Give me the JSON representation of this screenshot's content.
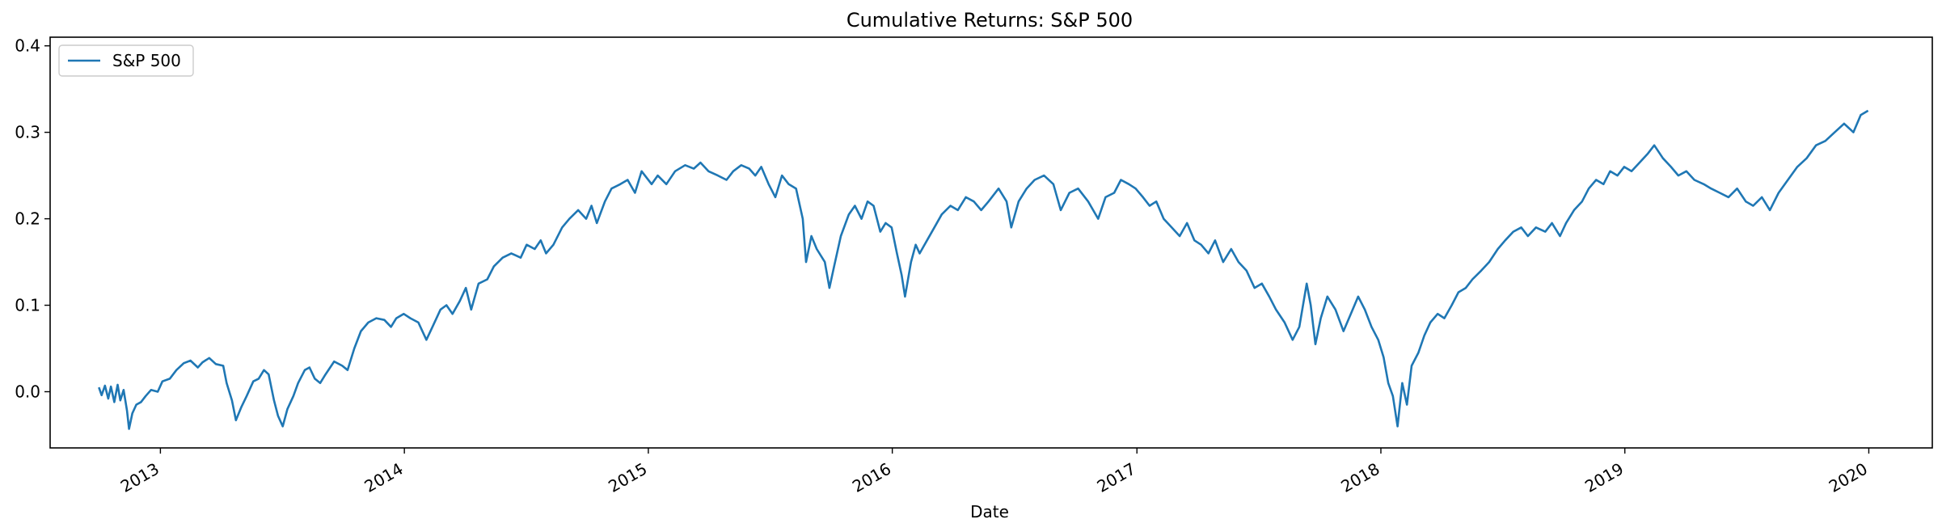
{
  "chart_data": {
    "type": "line",
    "title": "Cumulative Returns: S&P 500",
    "xlabel": "Date",
    "ylabel": "",
    "xlim": [
      "2012-07-20",
      "2020-04-05"
    ],
    "ylim": [
      -0.065,
      0.41
    ],
    "yticks": [
      0.0,
      0.1,
      0.2,
      0.3,
      0.4
    ],
    "ytick_labels": [
      "0.0",
      "0.1",
      "0.2",
      "0.3",
      "0.4"
    ],
    "xticks": [
      "2013-01-01",
      "2014-01-01",
      "2015-01-01",
      "2016-01-01",
      "2017-01-01",
      "2018-01-01",
      "2019-01-01",
      "2020-01-01"
    ],
    "xtick_labels": [
      "2013",
      "2014",
      "2015",
      "2016",
      "2017",
      "2018",
      "2019",
      "2020"
    ],
    "grid": false,
    "legend_position": "top-left",
    "colors": {
      "series": "#1f77b4",
      "axes": "#000000"
    },
    "series": [
      {
        "name": "S&P 500",
        "points": [
          [
            "2012-10-01",
            0.005
          ],
          [
            "2012-10-05",
            -0.004
          ],
          [
            "2012-10-10",
            0.007
          ],
          [
            "2012-10-15",
            -0.008
          ],
          [
            "2012-10-19",
            0.006
          ],
          [
            "2012-10-24",
            -0.012
          ],
          [
            "2012-10-29",
            0.008
          ],
          [
            "2012-11-02",
            -0.01
          ],
          [
            "2012-11-07",
            0.002
          ],
          [
            "2012-11-12",
            -0.022
          ],
          [
            "2012-11-15",
            -0.043
          ],
          [
            "2012-11-20",
            -0.025
          ],
          [
            "2012-11-26",
            -0.015
          ],
          [
            "2012-12-03",
            -0.012
          ],
          [
            "2012-12-10",
            -0.005
          ],
          [
            "2012-12-18",
            0.002
          ],
          [
            "2012-12-28",
            0.0
          ],
          [
            "2013-01-04",
            0.012
          ],
          [
            "2013-01-15",
            0.015
          ],
          [
            "2013-01-25",
            0.025
          ],
          [
            "2013-02-05",
            0.033
          ],
          [
            "2013-02-15",
            0.036
          ],
          [
            "2013-02-26",
            0.028
          ],
          [
            "2013-03-05",
            0.034
          ],
          [
            "2013-03-15",
            0.039
          ],
          [
            "2013-03-25",
            0.032
          ],
          [
            "2013-04-05",
            0.03
          ],
          [
            "2013-04-10",
            0.01
          ],
          [
            "2013-04-18",
            -0.01
          ],
          [
            "2013-04-24",
            -0.033
          ],
          [
            "2013-05-02",
            -0.018
          ],
          [
            "2013-05-10",
            -0.005
          ],
          [
            "2013-05-20",
            0.012
          ],
          [
            "2013-05-28",
            0.015
          ],
          [
            "2013-06-05",
            0.025
          ],
          [
            "2013-06-12",
            0.02
          ],
          [
            "2013-06-20",
            -0.01
          ],
          [
            "2013-06-26",
            -0.028
          ],
          [
            "2013-07-03",
            -0.04
          ],
          [
            "2013-07-10",
            -0.02
          ],
          [
            "2013-07-19",
            -0.005
          ],
          [
            "2013-07-26",
            0.01
          ],
          [
            "2013-08-05",
            0.025
          ],
          [
            "2013-08-12",
            0.028
          ],
          [
            "2013-08-20",
            0.015
          ],
          [
            "2013-08-28",
            0.01
          ],
          [
            "2013-09-05",
            0.02
          ],
          [
            "2013-09-18",
            0.035
          ],
          [
            "2013-09-30",
            0.03
          ],
          [
            "2013-10-08",
            0.025
          ],
          [
            "2013-10-18",
            0.05
          ],
          [
            "2013-10-28",
            0.07
          ],
          [
            "2013-11-08",
            0.08
          ],
          [
            "2013-11-20",
            0.085
          ],
          [
            "2013-12-02",
            0.083
          ],
          [
            "2013-12-12",
            0.075
          ],
          [
            "2013-12-20",
            0.085
          ],
          [
            "2013-12-31",
            0.09
          ],
          [
            "2014-01-10",
            0.085
          ],
          [
            "2014-01-22",
            0.08
          ],
          [
            "2014-02-03",
            0.06
          ],
          [
            "2014-02-12",
            0.075
          ],
          [
            "2014-02-24",
            0.095
          ],
          [
            "2014-03-05",
            0.1
          ],
          [
            "2014-03-14",
            0.09
          ],
          [
            "2014-03-25",
            0.105
          ],
          [
            "2014-04-03",
            0.12
          ],
          [
            "2014-04-11",
            0.095
          ],
          [
            "2014-04-22",
            0.125
          ],
          [
            "2014-05-05",
            0.13
          ],
          [
            "2014-05-15",
            0.145
          ],
          [
            "2014-05-28",
            0.155
          ],
          [
            "2014-06-10",
            0.16
          ],
          [
            "2014-06-24",
            0.155
          ],
          [
            "2014-07-03",
            0.17
          ],
          [
            "2014-07-15",
            0.165
          ],
          [
            "2014-07-24",
            0.175
          ],
          [
            "2014-08-01",
            0.16
          ],
          [
            "2014-08-12",
            0.17
          ],
          [
            "2014-08-25",
            0.19
          ],
          [
            "2014-09-05",
            0.2
          ],
          [
            "2014-09-18",
            0.21
          ],
          [
            "2014-09-30",
            0.2
          ],
          [
            "2014-10-08",
            0.215
          ],
          [
            "2014-10-16",
            0.195
          ],
          [
            "2014-10-28",
            0.22
          ],
          [
            "2014-11-07",
            0.235
          ],
          [
            "2014-11-20",
            0.24
          ],
          [
            "2014-12-01",
            0.245
          ],
          [
            "2014-12-12",
            0.23
          ],
          [
            "2014-12-22",
            0.255
          ],
          [
            "2015-01-06",
            0.24
          ],
          [
            "2015-01-15",
            0.25
          ],
          [
            "2015-01-28",
            0.24
          ],
          [
            "2015-02-10",
            0.255
          ],
          [
            "2015-02-25",
            0.262
          ],
          [
            "2015-03-10",
            0.258
          ],
          [
            "2015-03-20",
            0.265
          ],
          [
            "2015-04-01",
            0.255
          ],
          [
            "2015-04-15",
            0.25
          ],
          [
            "2015-04-28",
            0.245
          ],
          [
            "2015-05-08",
            0.255
          ],
          [
            "2015-05-20",
            0.262
          ],
          [
            "2015-06-01",
            0.258
          ],
          [
            "2015-06-10",
            0.25
          ],
          [
            "2015-06-19",
            0.26
          ],
          [
            "2015-06-30",
            0.24
          ],
          [
            "2015-07-10",
            0.225
          ],
          [
            "2015-07-20",
            0.25
          ],
          [
            "2015-07-30",
            0.24
          ],
          [
            "2015-08-10",
            0.235
          ],
          [
            "2015-08-20",
            0.2
          ],
          [
            "2015-08-25",
            0.15
          ],
          [
            "2015-09-02",
            0.18
          ],
          [
            "2015-09-10",
            0.165
          ],
          [
            "2015-09-22",
            0.15
          ],
          [
            "2015-09-29",
            0.12
          ],
          [
            "2015-10-06",
            0.145
          ],
          [
            "2015-10-16",
            0.18
          ],
          [
            "2015-10-28",
            0.205
          ],
          [
            "2015-11-06",
            0.215
          ],
          [
            "2015-11-16",
            0.2
          ],
          [
            "2015-11-25",
            0.22
          ],
          [
            "2015-12-04",
            0.215
          ],
          [
            "2015-12-14",
            0.185
          ],
          [
            "2015-12-22",
            0.195
          ],
          [
            "2015-12-31",
            0.19
          ],
          [
            "2016-01-08",
            0.16
          ],
          [
            "2016-01-15",
            0.135
          ],
          [
            "2016-01-20",
            0.11
          ],
          [
            "2016-01-29",
            0.15
          ],
          [
            "2016-02-05",
            0.17
          ],
          [
            "2016-02-11",
            0.16
          ],
          [
            "2016-02-22",
            0.175
          ],
          [
            "2016-03-04",
            0.19
          ],
          [
            "2016-03-15",
            0.205
          ],
          [
            "2016-03-28",
            0.215
          ],
          [
            "2016-04-08",
            0.21
          ],
          [
            "2016-04-20",
            0.225
          ],
          [
            "2016-05-02",
            0.22
          ],
          [
            "2016-05-13",
            0.21
          ],
          [
            "2016-05-24",
            0.22
          ],
          [
            "2016-06-08",
            0.235
          ],
          [
            "2016-06-20",
            0.22
          ],
          [
            "2016-06-27",
            0.19
          ],
          [
            "2016-07-08",
            0.22
          ],
          [
            "2016-07-20",
            0.235
          ],
          [
            "2016-08-01",
            0.245
          ],
          [
            "2016-08-15",
            0.25
          ],
          [
            "2016-08-29",
            0.24
          ],
          [
            "2016-09-09",
            0.21
          ],
          [
            "2016-09-22",
            0.23
          ],
          [
            "2016-10-05",
            0.235
          ],
          [
            "2016-10-20",
            0.22
          ],
          [
            "2016-11-04",
            0.2
          ],
          [
            "2016-11-15",
            0.225
          ],
          [
            "2016-11-28",
            0.23
          ],
          [
            "2016-12-08",
            0.245
          ],
          [
            "2016-12-20",
            0.24
          ],
          [
            "2016-12-30",
            0.235
          ],
          [
            "2017-01-10",
            0.225
          ],
          [
            "2017-01-20",
            0.215
          ],
          [
            "2017-01-30",
            0.22
          ],
          [
            "2017-02-10",
            0.2
          ],
          [
            "2017-02-22",
            0.19
          ],
          [
            "2017-03-06",
            0.18
          ],
          [
            "2017-03-17",
            0.195
          ],
          [
            "2017-03-28",
            0.175
          ],
          [
            "2017-04-07",
            0.17
          ],
          [
            "2017-04-18",
            0.16
          ],
          [
            "2017-04-28",
            0.175
          ],
          [
            "2017-05-10",
            0.15
          ],
          [
            "2017-05-22",
            0.165
          ],
          [
            "2017-06-02",
            0.15
          ],
          [
            "2017-06-14",
            0.14
          ],
          [
            "2017-06-26",
            0.12
          ],
          [
            "2017-07-07",
            0.125
          ],
          [
            "2017-07-18",
            0.11
          ],
          [
            "2017-07-28",
            0.095
          ],
          [
            "2017-08-10",
            0.08
          ],
          [
            "2017-08-22",
            0.06
          ],
          [
            "2017-09-01",
            0.075
          ],
          [
            "2017-09-12",
            0.125
          ],
          [
            "2017-09-18",
            0.1
          ],
          [
            "2017-09-25",
            0.055
          ],
          [
            "2017-10-03",
            0.085
          ],
          [
            "2017-10-13",
            0.11
          ],
          [
            "2017-10-25",
            0.095
          ],
          [
            "2017-11-06",
            0.07
          ],
          [
            "2017-11-17",
            0.09
          ],
          [
            "2017-11-28",
            0.11
          ],
          [
            "2017-12-08",
            0.095
          ],
          [
            "2017-12-18",
            0.075
          ],
          [
            "2017-12-28",
            0.06
          ],
          [
            "2018-01-05",
            0.04
          ],
          [
            "2018-01-12",
            0.01
          ],
          [
            "2018-01-19",
            -0.005
          ],
          [
            "2018-01-26",
            -0.04
          ],
          [
            "2018-02-02",
            0.01
          ],
          [
            "2018-02-09",
            -0.015
          ],
          [
            "2018-02-16",
            0.03
          ],
          [
            "2018-02-26",
            0.045
          ],
          [
            "2018-03-07",
            0.065
          ],
          [
            "2018-03-16",
            0.08
          ],
          [
            "2018-03-27",
            0.09
          ],
          [
            "2018-04-06",
            0.085
          ],
          [
            "2018-04-17",
            0.1
          ],
          [
            "2018-04-27",
            0.115
          ],
          [
            "2018-05-08",
            0.12
          ],
          [
            "2018-05-18",
            0.13
          ],
          [
            "2018-05-31",
            0.14
          ],
          [
            "2018-06-12",
            0.15
          ],
          [
            "2018-06-25",
            0.165
          ],
          [
            "2018-07-06",
            0.175
          ],
          [
            "2018-07-18",
            0.185
          ],
          [
            "2018-07-30",
            0.19
          ],
          [
            "2018-08-09",
            0.18
          ],
          [
            "2018-08-21",
            0.19
          ],
          [
            "2018-09-04",
            0.185
          ],
          [
            "2018-09-14",
            0.195
          ],
          [
            "2018-09-26",
            0.18
          ],
          [
            "2018-10-05",
            0.195
          ],
          [
            "2018-10-17",
            0.21
          ],
          [
            "2018-10-29",
            0.22
          ],
          [
            "2018-11-08",
            0.235
          ],
          [
            "2018-11-19",
            0.245
          ],
          [
            "2018-11-30",
            0.24
          ],
          [
            "2018-12-10",
            0.255
          ],
          [
            "2018-12-21",
            0.25
          ],
          [
            "2018-12-31",
            0.26
          ],
          [
            "2019-01-11",
            0.255
          ],
          [
            "2019-01-23",
            0.265
          ],
          [
            "2019-02-04",
            0.275
          ],
          [
            "2019-02-14",
            0.285
          ],
          [
            "2019-02-27",
            0.27
          ],
          [
            "2019-03-11",
            0.26
          ],
          [
            "2019-03-22",
            0.25
          ],
          [
            "2019-04-03",
            0.255
          ],
          [
            "2019-04-15",
            0.245
          ],
          [
            "2019-04-29",
            0.24
          ],
          [
            "2019-05-10",
            0.235
          ],
          [
            "2019-05-23",
            0.23
          ],
          [
            "2019-06-05",
            0.225
          ],
          [
            "2019-06-18",
            0.235
          ],
          [
            "2019-07-01",
            0.22
          ],
          [
            "2019-07-12",
            0.215
          ],
          [
            "2019-07-25",
            0.225
          ],
          [
            "2019-08-06",
            0.21
          ],
          [
            "2019-08-19",
            0.23
          ],
          [
            "2019-09-02",
            0.245
          ],
          [
            "2019-09-16",
            0.26
          ],
          [
            "2019-09-30",
            0.27
          ],
          [
            "2019-10-14",
            0.285
          ],
          [
            "2019-10-28",
            0.29
          ],
          [
            "2019-11-11",
            0.3
          ],
          [
            "2019-11-25",
            0.31
          ],
          [
            "2019-12-09",
            0.3
          ],
          [
            "2019-12-20",
            0.32
          ],
          [
            "2019-12-31",
            0.325
          ]
        ]
      }
    ]
  }
}
